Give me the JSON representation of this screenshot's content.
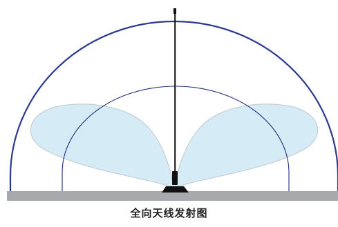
{
  "caption": "全向天线发射图",
  "colors": {
    "outer_arc": "#2b3990",
    "inner_arc": "#1e2a78",
    "lobe_fill": "#d5ecf7",
    "lobe_stroke": "#c4cdd3",
    "ground": "#a7a9ac",
    "antenna": "#111111"
  },
  "icons": {
    "antenna": "omnidirectional-antenna-icon"
  }
}
